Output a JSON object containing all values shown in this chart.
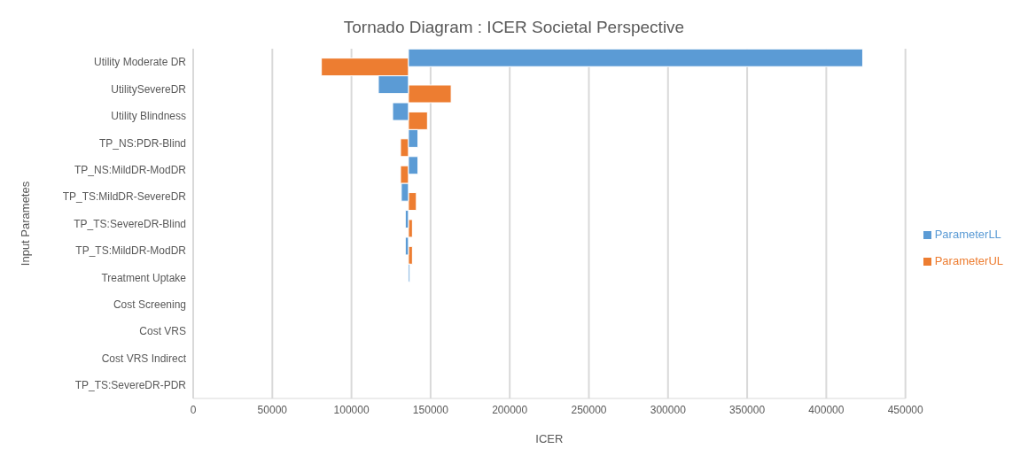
{
  "chart_data": {
    "type": "bar",
    "orientation": "horizontal",
    "title": "Tornado Diagram : ICER Societal Perspective",
    "xlabel": "ICER",
    "ylabel": "Input Parametes",
    "categories": [
      "Utility Moderate DR",
      "UtilitySevereDR",
      "Utility Blindness",
      "TP_NS:PDR-Blind",
      "TP_NS:MildDR-ModDR",
      "TP_TS:MildDR-SevereDR",
      "TP_TS:SevereDR-Blind",
      "TP_TS:MildDR-ModDR",
      "Treatment Uptake",
      "Cost Screening",
      "Cost VRS",
      "Cost VRS Indirect",
      "TP_TS:SevereDR-PDR"
    ],
    "series": [
      {
        "name": "ParameterUL",
        "color": "#ed7d31",
        "base": [
          81000,
          136000,
          136000,
          131000,
          131000,
          136000,
          136000,
          136000,
          null,
          null,
          null,
          null,
          null
        ],
        "values": [
          55000,
          27000,
          12000,
          5000,
          5000,
          5000,
          2500,
          2500,
          null,
          null,
          null,
          null,
          null
        ]
      },
      {
        "name": "ParameterLL",
        "color": "#5b9bd5",
        "base": [
          136000,
          117000,
          126000,
          136000,
          136000,
          131500,
          134000,
          134000,
          136000,
          null,
          null,
          null,
          null
        ],
        "values": [
          287000,
          19000,
          10000,
          6000,
          6000,
          4500,
          2000,
          2000,
          1000,
          null,
          null,
          null,
          null
        ]
      }
    ],
    "xlim": [
      0,
      450000
    ],
    "xticks": [
      0,
      50000,
      100000,
      150000,
      200000,
      250000,
      300000,
      350000,
      400000,
      450000
    ],
    "grid": "x",
    "legend": "right"
  }
}
